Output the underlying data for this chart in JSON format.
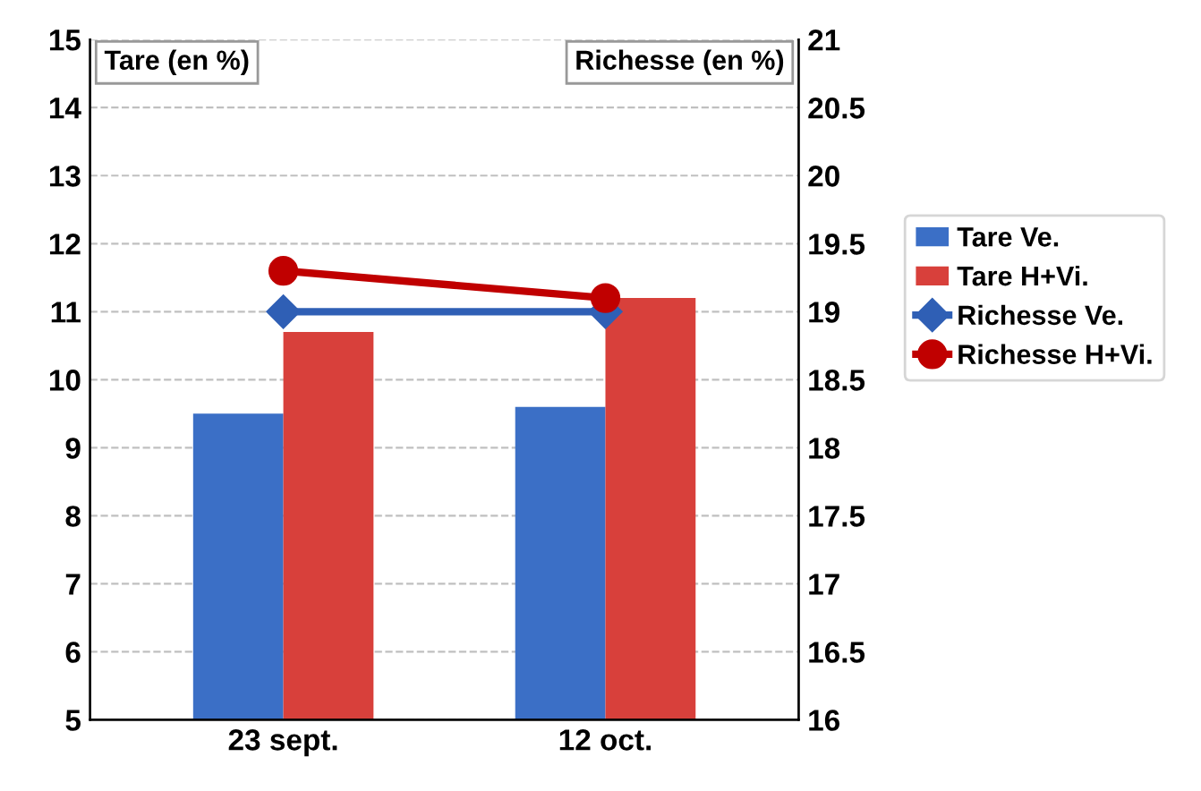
{
  "chart_data": {
    "type": "bar",
    "categories": [
      "23 sept.",
      "12 oct."
    ],
    "ylabel": "Tare (en %)",
    "y2label": "Richesse (en %)",
    "series": [
      {
        "name": "Tare Ve.",
        "color": "#3b6fc6",
        "values": [
          9.5,
          9.6
        ]
      },
      {
        "name": "Tare H+Vi.",
        "color": "#d8403b",
        "values": [
          10.7,
          11.2
        ]
      },
      {
        "name": "Richesse Ve.",
        "type": "line",
        "axis": "y2",
        "marker": "diamond",
        "color": "#2f5fb5",
        "values": [
          19.0,
          19.0
        ]
      },
      {
        "name": "Richesse H+Vi.",
        "type": "line",
        "axis": "y2",
        "marker": "circle",
        "color": "#c00000",
        "values": [
          19.3,
          19.1
        ]
      }
    ],
    "ylim": [
      5,
      15
    ],
    "yticks": [
      5,
      6,
      7,
      8,
      9,
      10,
      11,
      12,
      13,
      14,
      15
    ],
    "y2lim": [
      16,
      21
    ],
    "y2ticks": [
      16,
      {
        "value": 16.5,
        "label": "16.5"
      },
      17,
      {
        "value": 17.5,
        "label": "17.5"
      },
      18,
      {
        "value": 18.5,
        "label": "18.5"
      },
      19,
      {
        "value": 19.5,
        "label": "19.5"
      },
      20,
      {
        "value": 20.5,
        "label": "20.5"
      },
      21
    ],
    "grid": "y",
    "legend": "right"
  }
}
